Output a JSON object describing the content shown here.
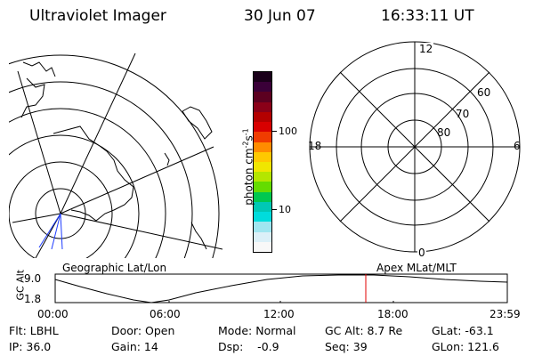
{
  "header": {
    "title": "Ultraviolet Imager",
    "date": "30 Jun 07",
    "time": "16:33:11 UT"
  },
  "colorbar": {
    "label": "photon cm",
    "label_sup1": "-2",
    "label_s": "s",
    "label_sup2": "-1",
    "tick_100": "100",
    "tick_10": "10",
    "colors": [
      "#1a001a",
      "#3a0038",
      "#5c0020",
      "#8a0018",
      "#b40000",
      "#d80000",
      "#f03c00",
      "#ff8c00",
      "#ffc800",
      "#f0e600",
      "#b4e600",
      "#64dc00",
      "#00c850",
      "#00c8b4",
      "#00dcdc",
      "#a0e6f0",
      "#dcf0f8",
      "#f8f8f8"
    ]
  },
  "polar": {
    "label_12": "12",
    "label_18": "18",
    "label_6": "6",
    "label_0": "0",
    "label_60": "60",
    "label_70": "70",
    "label_80": "80"
  },
  "plot_labels": {
    "left": "Geographic Lat/Lon",
    "right": "Apex MLat/MLT"
  },
  "gc_alt": {
    "ylabel": "GC Alt",
    "ytick_top": "9.0",
    "ytick_bottom": "1.8",
    "xticks": [
      "00:00",
      "06:00",
      "12:00",
      "18:00",
      "23:59"
    ]
  },
  "info": {
    "flt": "Flt: LBHL",
    "ip": "IP: 36.0",
    "door": "Door: Open",
    "gain": "Gain: 14",
    "mode": "Mode: Normal",
    "dsp": "Dsp:    -0.9",
    "gcalt": "GC Alt: 8.7 Re",
    "seq": "Seq: 39",
    "glat": "GLat: -63.1",
    "glon": "GLon: 121.6"
  }
}
